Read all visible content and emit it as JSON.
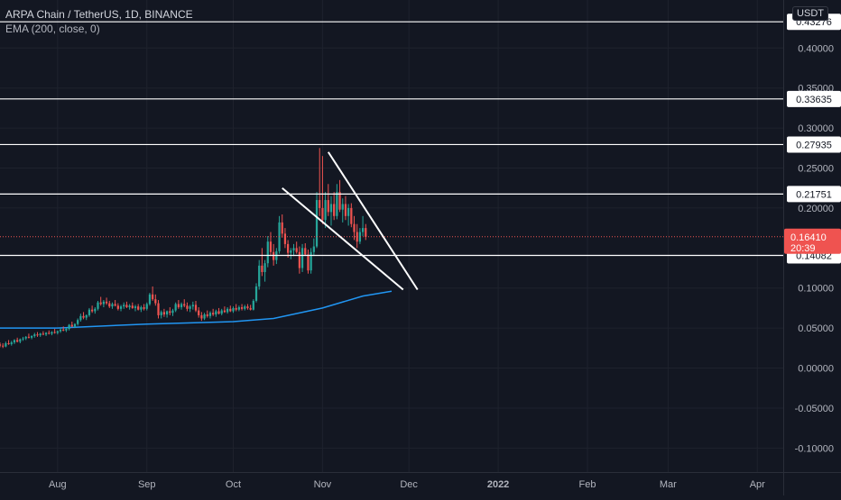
{
  "legend": {
    "symbol": "ARPA Chain / TetherUS, 1D, BINANCE",
    "indicator": "EMA (200, close, 0)"
  },
  "price_axis": {
    "currency": "USDT",
    "ticks": [
      "0.40000",
      "0.35000",
      "0.30000",
      "0.25000",
      "0.20000",
      "0.10000",
      "0.05000",
      "0.00000",
      "-0.05000",
      "-0.10000"
    ]
  },
  "time_axis": {
    "labels": [
      "Aug",
      "Sep",
      "Oct",
      "Nov",
      "Dec",
      "2022",
      "Feb",
      "Mar",
      "Apr"
    ]
  },
  "colors": {
    "background": "#131722",
    "up": "#26a69a",
    "down": "#ef5350",
    "ema": "#2196f3",
    "level_line": "#ffffff",
    "current_price": "#ef5350"
  },
  "chart_data": {
    "type": "candlestick",
    "title": "ARPA Chain / TetherUS, 1D, BINANCE",
    "ylim": [
      -0.13,
      0.46
    ],
    "xlim": [
      "2021-07-12",
      "2022-04-10"
    ],
    "horizontal_levels": [
      {
        "label": "0.43276",
        "value": 0.43276
      },
      {
        "label": "0.33635",
        "value": 0.33635
      },
      {
        "label": "0.27935",
        "value": 0.27935
      },
      {
        "label": "0.21751",
        "value": 0.21751
      },
      {
        "label": "0.14082",
        "value": 0.14082
      }
    ],
    "current_price": {
      "value": 0.1641,
      "label": "0.16410",
      "countdown": "20:39"
    },
    "ema": {
      "name": "EMA (200, close, 0)",
      "dates": [
        "2021-07-12",
        "2021-08-01",
        "2021-09-01",
        "2021-10-01",
        "2021-10-15",
        "2021-11-01",
        "2021-11-15",
        "2021-11-25"
      ],
      "values": [
        0.05,
        0.05,
        0.055,
        0.058,
        0.062,
        0.075,
        0.09,
        0.096
      ]
    },
    "wedge_lines": [
      {
        "from": {
          "date": "2021-10-18",
          "value": 0.225
        },
        "to": {
          "date": "2021-11-29",
          "value": 0.098
        }
      },
      {
        "from": {
          "date": "2021-11-03",
          "value": 0.27
        },
        "to": {
          "date": "2021-12-04",
          "value": 0.098
        }
      }
    ],
    "candles_start": "2021-07-12",
    "candles": [
      [
        0.0295,
        0.032,
        0.026,
        0.028
      ],
      [
        0.028,
        0.031,
        0.025,
        0.027
      ],
      [
        0.027,
        0.033,
        0.026,
        0.031
      ],
      [
        0.031,
        0.035,
        0.029,
        0.03
      ],
      [
        0.03,
        0.034,
        0.028,
        0.032
      ],
      [
        0.032,
        0.036,
        0.03,
        0.035
      ],
      [
        0.035,
        0.038,
        0.032,
        0.033
      ],
      [
        0.033,
        0.037,
        0.031,
        0.036
      ],
      [
        0.036,
        0.039,
        0.034,
        0.037
      ],
      [
        0.037,
        0.04,
        0.035,
        0.039
      ],
      [
        0.039,
        0.043,
        0.037,
        0.038
      ],
      [
        0.038,
        0.041,
        0.036,
        0.04
      ],
      [
        0.04,
        0.044,
        0.038,
        0.042
      ],
      [
        0.042,
        0.045,
        0.039,
        0.041
      ],
      [
        0.041,
        0.044,
        0.039,
        0.043
      ],
      [
        0.043,
        0.046,
        0.041,
        0.042
      ],
      [
        0.042,
        0.045,
        0.04,
        0.044
      ],
      [
        0.044,
        0.047,
        0.042,
        0.043
      ],
      [
        0.043,
        0.046,
        0.041,
        0.045
      ],
      [
        0.045,
        0.049,
        0.043,
        0.044
      ],
      [
        0.044,
        0.047,
        0.042,
        0.046
      ],
      [
        0.046,
        0.05,
        0.044,
        0.048
      ],
      [
        0.048,
        0.052,
        0.046,
        0.047
      ],
      [
        0.047,
        0.05,
        0.045,
        0.049
      ],
      [
        0.049,
        0.055,
        0.047,
        0.054
      ],
      [
        0.054,
        0.058,
        0.051,
        0.052
      ],
      [
        0.052,
        0.056,
        0.05,
        0.055
      ],
      [
        0.055,
        0.062,
        0.053,
        0.06
      ],
      [
        0.06,
        0.068,
        0.058,
        0.065
      ],
      [
        0.065,
        0.07,
        0.061,
        0.063
      ],
      [
        0.063,
        0.067,
        0.06,
        0.066
      ],
      [
        0.066,
        0.075,
        0.064,
        0.073
      ],
      [
        0.073,
        0.078,
        0.069,
        0.071
      ],
      [
        0.071,
        0.076,
        0.068,
        0.074
      ],
      [
        0.074,
        0.084,
        0.072,
        0.082
      ],
      [
        0.082,
        0.089,
        0.078,
        0.08
      ],
      [
        0.08,
        0.085,
        0.076,
        0.083
      ],
      [
        0.083,
        0.088,
        0.079,
        0.081
      ],
      [
        0.081,
        0.084,
        0.075,
        0.077
      ],
      [
        0.077,
        0.082,
        0.074,
        0.08
      ],
      [
        0.08,
        0.085,
        0.077,
        0.078
      ],
      [
        0.078,
        0.081,
        0.072,
        0.074
      ],
      [
        0.074,
        0.079,
        0.071,
        0.077
      ],
      [
        0.077,
        0.082,
        0.074,
        0.079
      ],
      [
        0.079,
        0.083,
        0.075,
        0.076
      ],
      [
        0.076,
        0.08,
        0.073,
        0.078
      ],
      [
        0.078,
        0.082,
        0.074,
        0.075
      ],
      [
        0.075,
        0.079,
        0.071,
        0.077
      ],
      [
        0.077,
        0.08,
        0.072,
        0.073
      ],
      [
        0.073,
        0.078,
        0.07,
        0.076
      ],
      [
        0.076,
        0.08,
        0.072,
        0.074
      ],
      [
        0.074,
        0.082,
        0.072,
        0.08
      ],
      [
        0.08,
        0.094,
        0.078,
        0.092
      ],
      [
        0.092,
        0.102,
        0.084,
        0.086
      ],
      [
        0.086,
        0.092,
        0.078,
        0.081
      ],
      [
        0.081,
        0.085,
        0.062,
        0.066
      ],
      [
        0.066,
        0.072,
        0.062,
        0.07
      ],
      [
        0.07,
        0.074,
        0.064,
        0.067
      ],
      [
        0.067,
        0.072,
        0.063,
        0.071
      ],
      [
        0.071,
        0.076,
        0.066,
        0.069
      ],
      [
        0.069,
        0.074,
        0.065,
        0.072
      ],
      [
        0.072,
        0.082,
        0.07,
        0.08
      ],
      [
        0.08,
        0.085,
        0.074,
        0.076
      ],
      [
        0.076,
        0.082,
        0.073,
        0.08
      ],
      [
        0.08,
        0.086,
        0.076,
        0.078
      ],
      [
        0.078,
        0.082,
        0.071,
        0.074
      ],
      [
        0.074,
        0.079,
        0.07,
        0.077
      ],
      [
        0.077,
        0.083,
        0.073,
        0.079
      ],
      [
        0.079,
        0.084,
        0.07,
        0.072
      ],
      [
        0.072,
        0.076,
        0.063,
        0.066
      ],
      [
        0.066,
        0.07,
        0.059,
        0.062
      ],
      [
        0.062,
        0.069,
        0.06,
        0.067
      ],
      [
        0.067,
        0.072,
        0.063,
        0.065
      ],
      [
        0.065,
        0.071,
        0.062,
        0.069
      ],
      [
        0.069,
        0.074,
        0.065,
        0.067
      ],
      [
        0.067,
        0.073,
        0.064,
        0.071
      ],
      [
        0.071,
        0.075,
        0.067,
        0.068
      ],
      [
        0.068,
        0.074,
        0.066,
        0.072
      ],
      [
        0.072,
        0.077,
        0.069,
        0.07
      ],
      [
        0.07,
        0.076,
        0.068,
        0.074
      ],
      [
        0.074,
        0.078,
        0.07,
        0.071
      ],
      [
        0.071,
        0.077,
        0.069,
        0.075
      ],
      [
        0.075,
        0.08,
        0.071,
        0.073
      ],
      [
        0.073,
        0.078,
        0.071,
        0.076
      ],
      [
        0.076,
        0.08,
        0.072,
        0.074
      ],
      [
        0.074,
        0.079,
        0.072,
        0.077
      ],
      [
        0.077,
        0.08,
        0.073,
        0.075
      ],
      [
        0.075,
        0.079,
        0.072,
        0.073
      ],
      [
        0.073,
        0.086,
        0.072,
        0.084
      ],
      [
        0.084,
        0.106,
        0.082,
        0.102
      ],
      [
        0.102,
        0.135,
        0.098,
        0.128
      ],
      [
        0.128,
        0.15,
        0.115,
        0.12
      ],
      [
        0.12,
        0.135,
        0.108,
        0.131
      ],
      [
        0.131,
        0.165,
        0.126,
        0.158
      ],
      [
        0.158,
        0.17,
        0.14,
        0.145
      ],
      [
        0.145,
        0.155,
        0.128,
        0.135
      ],
      [
        0.135,
        0.15,
        0.13,
        0.146
      ],
      [
        0.146,
        0.19,
        0.143,
        0.182
      ],
      [
        0.182,
        0.192,
        0.163,
        0.168
      ],
      [
        0.168,
        0.175,
        0.15,
        0.155
      ],
      [
        0.155,
        0.16,
        0.138,
        0.144
      ],
      [
        0.144,
        0.15,
        0.136,
        0.147
      ],
      [
        0.147,
        0.155,
        0.14,
        0.15
      ],
      [
        0.15,
        0.158,
        0.143,
        0.145
      ],
      [
        0.145,
        0.152,
        0.118,
        0.125
      ],
      [
        0.125,
        0.155,
        0.12,
        0.15
      ],
      [
        0.15,
        0.156,
        0.14,
        0.142
      ],
      [
        0.142,
        0.148,
        0.118,
        0.122
      ],
      [
        0.122,
        0.15,
        0.118,
        0.145
      ],
      [
        0.145,
        0.162,
        0.14,
        0.152
      ],
      [
        0.152,
        0.22,
        0.15,
        0.21
      ],
      [
        0.21,
        0.275,
        0.19,
        0.2
      ],
      [
        0.2,
        0.265,
        0.18,
        0.185
      ],
      [
        0.185,
        0.22,
        0.175,
        0.21
      ],
      [
        0.21,
        0.23,
        0.19,
        0.195
      ],
      [
        0.195,
        0.215,
        0.178,
        0.205
      ],
      [
        0.205,
        0.22,
        0.185,
        0.19
      ],
      [
        0.19,
        0.23,
        0.186,
        0.22
      ],
      [
        0.22,
        0.235,
        0.195,
        0.198
      ],
      [
        0.198,
        0.212,
        0.182,
        0.205
      ],
      [
        0.205,
        0.215,
        0.185,
        0.19
      ],
      [
        0.19,
        0.205,
        0.178,
        0.2
      ],
      [
        0.2,
        0.206,
        0.176,
        0.18
      ],
      [
        0.18,
        0.19,
        0.16,
        0.17
      ],
      [
        0.17,
        0.18,
        0.15,
        0.158
      ],
      [
        0.158,
        0.175,
        0.155,
        0.17
      ],
      [
        0.17,
        0.19,
        0.165,
        0.175
      ],
      [
        0.175,
        0.18,
        0.16,
        0.164
      ]
    ]
  }
}
